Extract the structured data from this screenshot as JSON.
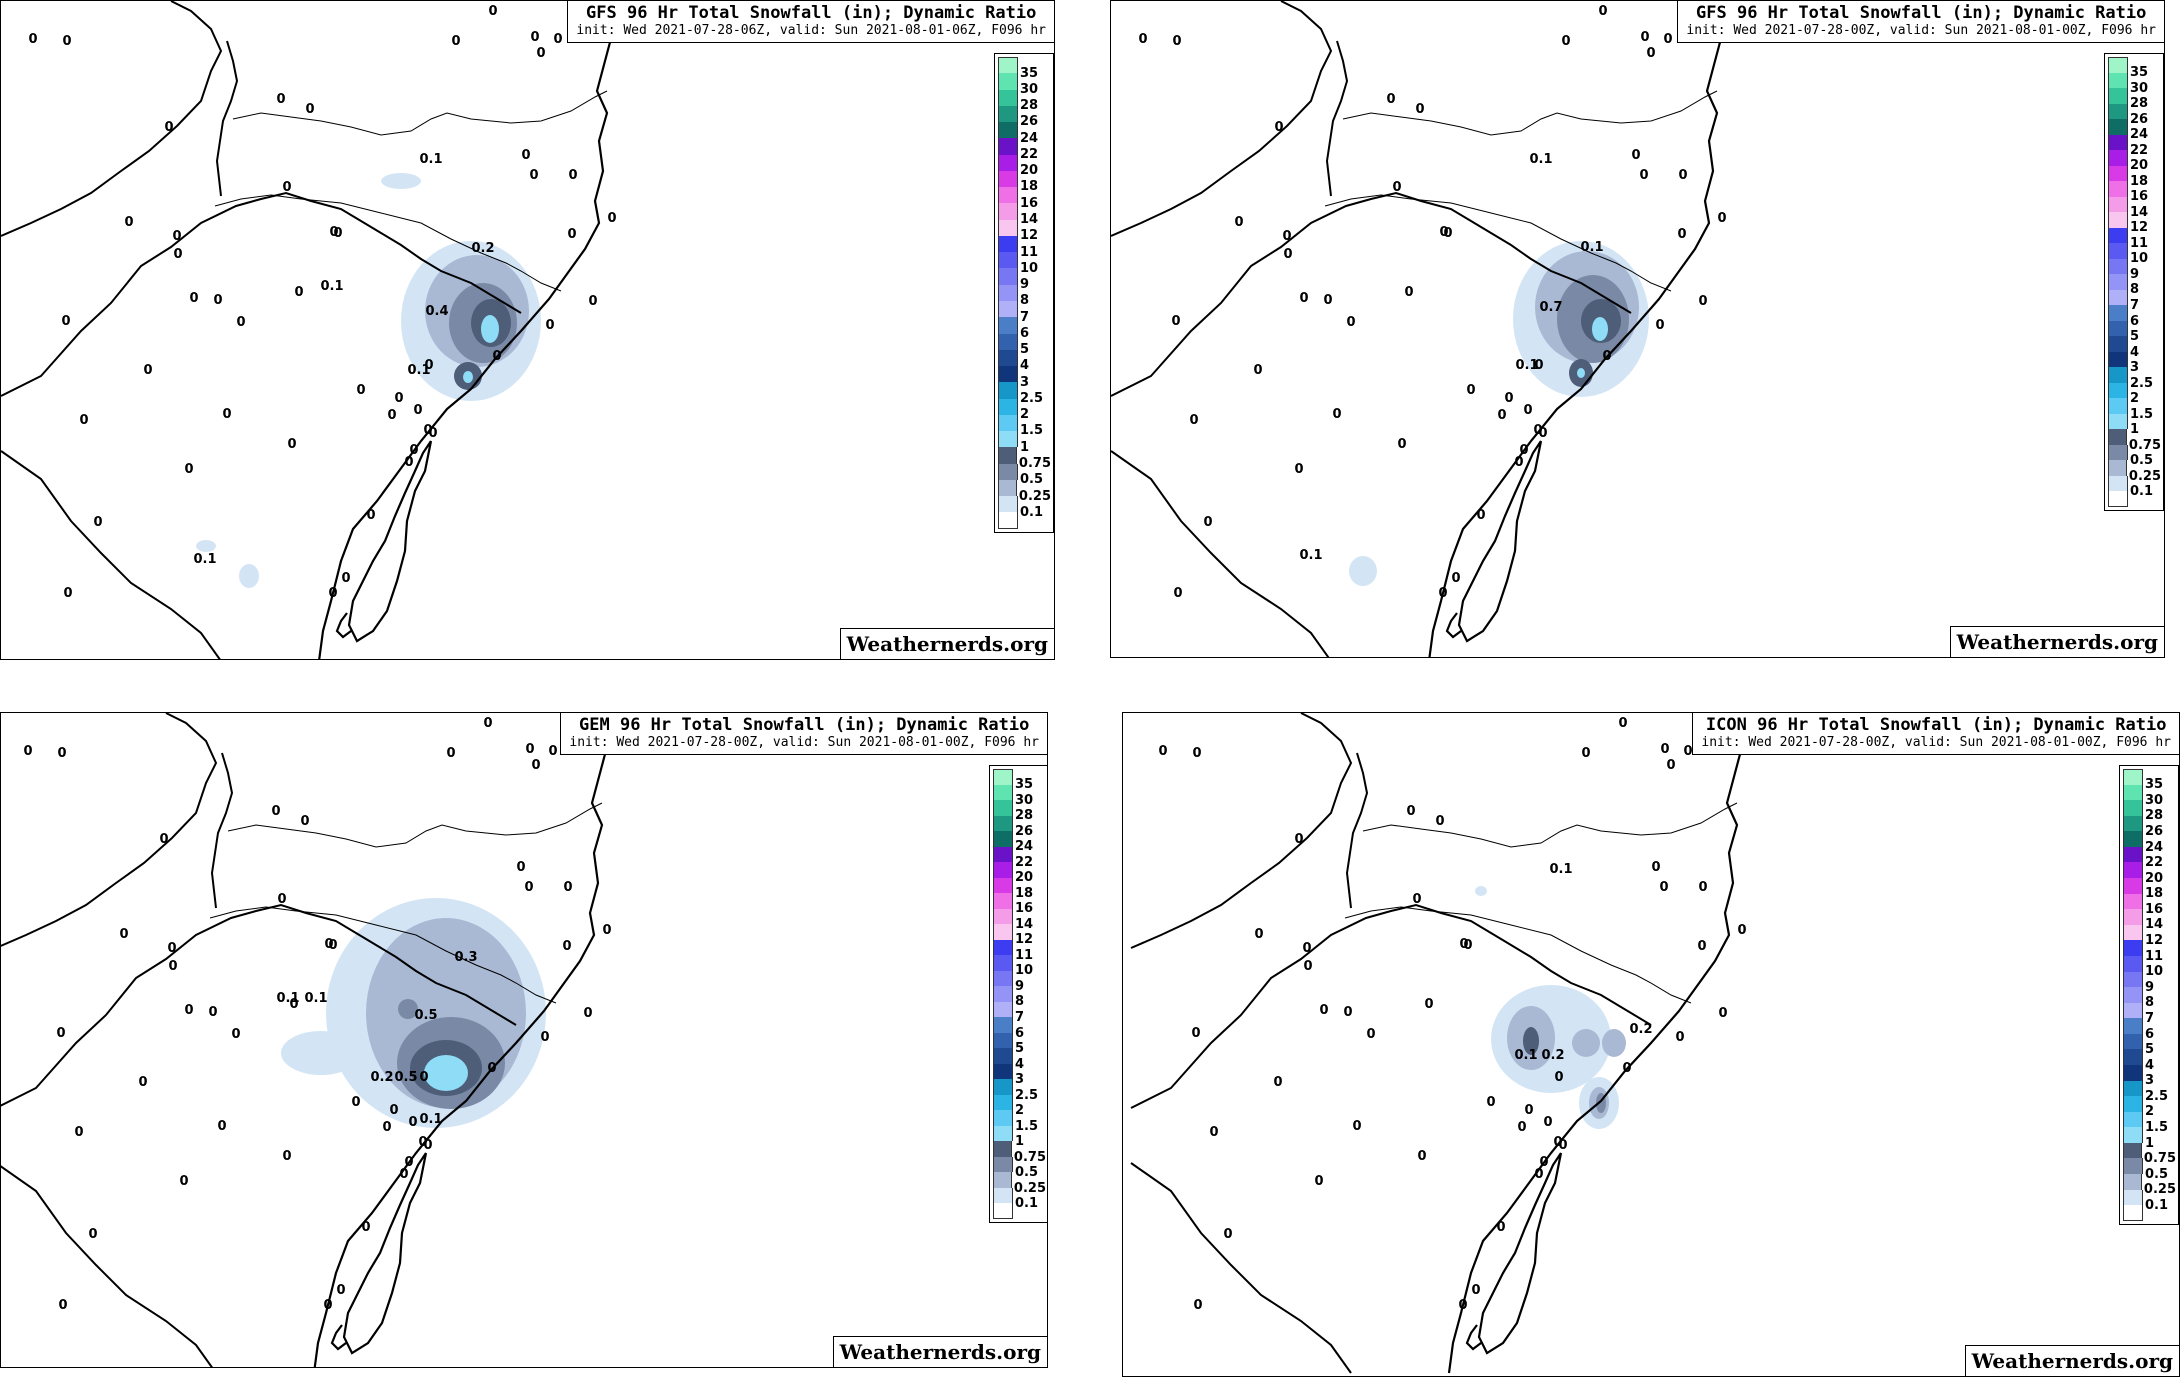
{
  "panels": [
    {
      "model": "GFS",
      "title": "GFS 96 Hr Total Snowfall (in); Dynamic Ratio",
      "subtitle": "init: Wed 2021-07-28-06Z, valid: Sun 2021-08-01-06Z, F096 hr",
      "watermark": "Weathernerds.org",
      "labels": [
        "0.1",
        "0.2",
        "0.1",
        "0.4",
        "0.1",
        "0.1"
      ]
    },
    {
      "model": "GFS",
      "title": "GFS 96 Hr Total Snowfall (in); Dynamic Ratio",
      "subtitle": "init: Wed 2021-07-28-00Z, valid: Sun 2021-08-01-00Z, F096 hr",
      "watermark": "Weathernerds.org",
      "labels": [
        "0.1",
        "0.1",
        "0.7",
        "0.1",
        "0.1"
      ]
    },
    {
      "model": "GEM",
      "title": "GEM 96 Hr Total Snowfall (in); Dynamic Ratio",
      "subtitle": "init: Wed 2021-07-28-00Z, valid: Sun 2021-08-01-00Z, F096 hr",
      "watermark": "Weathernerds.org",
      "labels": [
        "0.3",
        "0.1",
        "0.1",
        "0.5",
        "0.2",
        "0.5",
        "0.1"
      ]
    },
    {
      "model": "ICON",
      "title": "ICON 96 Hr Total Snowfall (in); Dynamic Ratio",
      "subtitle": "init: Wed 2021-07-28-00Z, valid: Sun 2021-08-01-00Z, F096 hr",
      "watermark": "Weathernerds.org",
      "labels": [
        "0.1",
        "0.2",
        "0.1",
        "0.2"
      ]
    }
  ],
  "station_value": "0",
  "legend": {
    "unit": "in",
    "levels": [
      {
        "label": "35",
        "color": "#9ff5c8"
      },
      {
        "label": "30",
        "color": "#5fe3b0"
      },
      {
        "label": "28",
        "color": "#35c49a"
      },
      {
        "label": "26",
        "color": "#1e9880"
      },
      {
        "label": "24",
        "color": "#0e6e66"
      },
      {
        "label": "22",
        "color": "#6a12c8"
      },
      {
        "label": "20",
        "color": "#a81ee6"
      },
      {
        "label": "18",
        "color": "#d83ae6"
      },
      {
        "label": "16",
        "color": "#ef6fe6"
      },
      {
        "label": "14",
        "color": "#f59ce8"
      },
      {
        "label": "12",
        "color": "#f8c6ef"
      },
      {
        "label": "11",
        "color": "#3c3cf0"
      },
      {
        "label": "10",
        "color": "#5a5af2"
      },
      {
        "label": "9",
        "color": "#7777f4"
      },
      {
        "label": "8",
        "color": "#9494f6"
      },
      {
        "label": "7",
        "color": "#b0b0f8"
      },
      {
        "label": "6",
        "color": "#4a7fc8"
      },
      {
        "label": "5",
        "color": "#3262ad"
      },
      {
        "label": "4",
        "color": "#1f4a92"
      },
      {
        "label": "3",
        "color": "#10357a"
      },
      {
        "label": "2.5",
        "color": "#1796c8"
      },
      {
        "label": "2",
        "color": "#2bb4e4"
      },
      {
        "label": "1.5",
        "color": "#5ccaf2"
      },
      {
        "label": "1",
        "color": "#8fdcf6"
      },
      {
        "label": "0.75",
        "color": "#4e5d78"
      },
      {
        "label": "0.5",
        "color": "#7a8aa6"
      },
      {
        "label": "0.25",
        "color": "#a9b9d3"
      },
      {
        "label": "0.1",
        "color": "#d3e5f5"
      },
      {
        "label": "",
        "color": "#ffffff"
      }
    ]
  }
}
